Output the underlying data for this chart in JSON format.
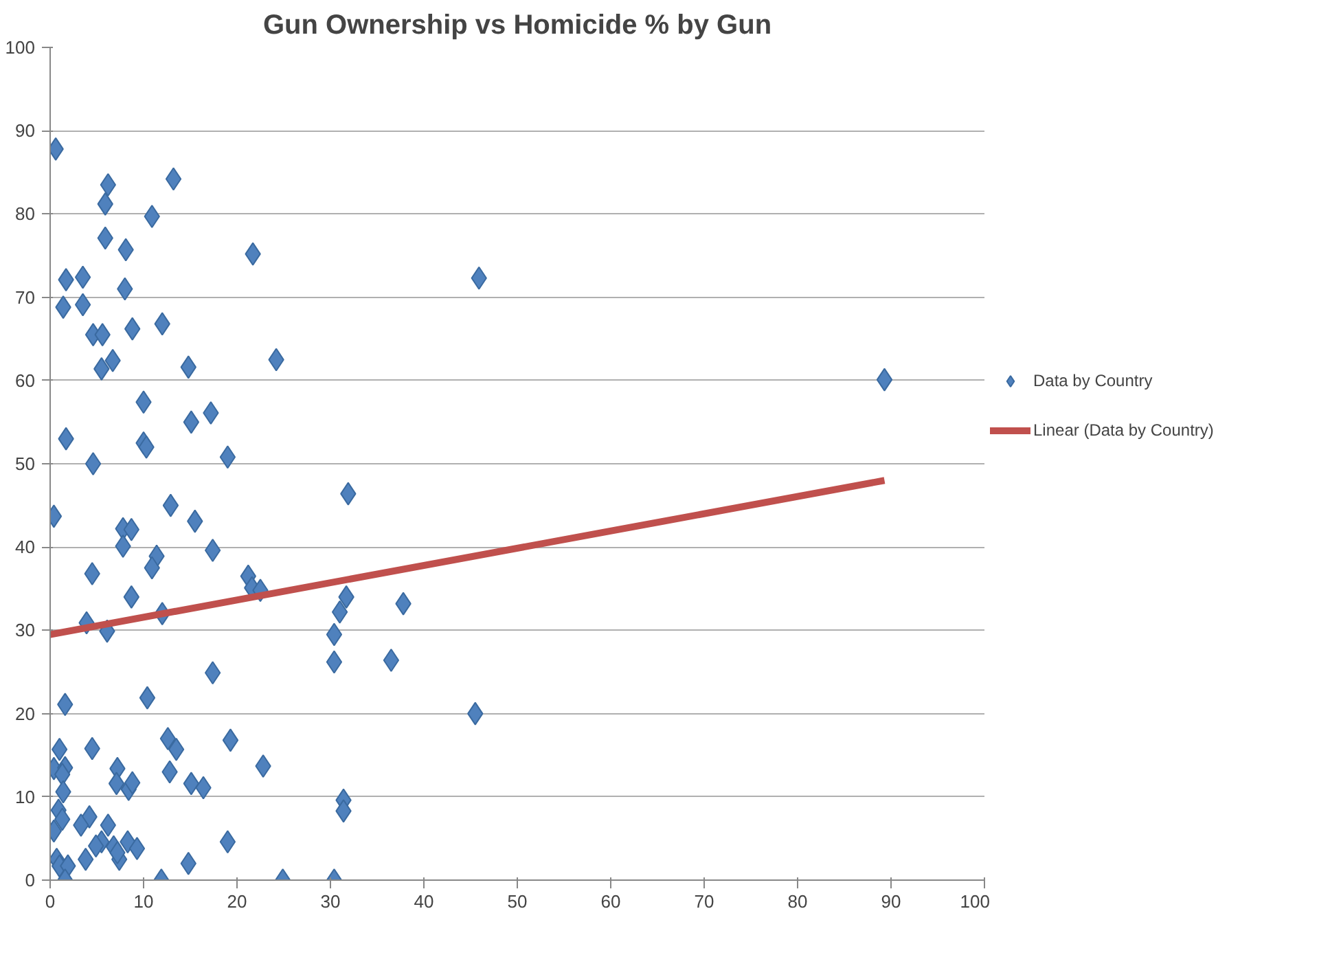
{
  "chart_data": {
    "type": "scatter",
    "title": "Gun Ownership vs Homicide % by Gun",
    "xlim": [
      0,
      100
    ],
    "ylim": [
      0,
      100
    ],
    "xticks": [
      0,
      10,
      20,
      30,
      40,
      50,
      60,
      70,
      80,
      90,
      100
    ],
    "yticks": [
      0,
      10,
      20,
      30,
      40,
      50,
      60,
      70,
      80,
      90,
      100
    ],
    "grid": "y",
    "legend": "right",
    "marker": "diamond",
    "series": [
      {
        "name": "Data by Country",
        "color": "#4f81bd",
        "x": [
          0.6,
          6.2,
          13.2,
          5.9,
          10.9,
          5.9,
          8.1,
          21.7,
          1.7,
          3.5,
          45.9,
          8.0,
          1.4,
          3.5,
          12.0,
          8.8,
          4.6,
          5.6,
          24.2,
          6.7,
          5.5,
          14.8,
          89.3,
          10.0,
          17.2,
          15.1,
          1.7,
          10.0,
          10.3,
          19.0,
          4.6,
          31.9,
          12.9,
          15.5,
          0.4,
          7.8,
          8.7,
          7.8,
          17.4,
          11.4,
          10.9,
          4.5,
          21.2,
          21.6,
          22.5,
          8.7,
          31.7,
          37.8,
          31.0,
          12.0,
          3.9,
          30.4,
          6.1,
          30.4,
          36.5,
          17.4,
          10.4,
          1.6,
          45.5,
          12.6,
          19.3,
          13.5,
          1.0,
          4.5,
          0.4,
          1.6,
          1.3,
          7.2,
          22.8,
          12.8,
          7.1,
          15.1,
          8.4,
          8.8,
          16.4,
          1.4,
          31.4,
          31.4,
          0.9,
          1.3,
          4.2,
          3.3,
          6.2,
          0.4,
          8.3,
          5.5,
          4.9,
          19.0,
          6.8,
          9.3,
          7.4,
          7.2,
          3.8,
          14.8,
          0.7,
          1.0,
          1.9,
          1.6,
          11.9,
          24.9,
          30.4
        ],
        "values": [
          87.8,
          83.5,
          84.2,
          81.2,
          79.7,
          77.1,
          75.7,
          75.2,
          72.1,
          72.4,
          72.3,
          71.0,
          68.8,
          69.1,
          66.8,
          66.2,
          65.5,
          65.5,
          62.5,
          62.4,
          61.4,
          61.6,
          60.1,
          57.4,
          56.1,
          55.0,
          53.0,
          52.5,
          52.0,
          50.8,
          50.0,
          46.4,
          45.0,
          43.1,
          43.7,
          42.2,
          42.1,
          40.1,
          39.6,
          38.9,
          37.5,
          36.8,
          36.5,
          35.1,
          34.8,
          34.0,
          34.0,
          33.2,
          32.2,
          32.0,
          30.9,
          29.5,
          29.9,
          26.2,
          26.4,
          24.9,
          21.9,
          21.1,
          20.0,
          17.0,
          16.8,
          15.7,
          15.7,
          15.8,
          13.4,
          13.5,
          12.7,
          13.4,
          13.7,
          13.0,
          11.6,
          11.6,
          10.9,
          11.7,
          11.1,
          10.6,
          9.6,
          8.3,
          8.4,
          7.3,
          7.6,
          6.6,
          6.6,
          5.9,
          4.6,
          4.6,
          4.1,
          4.6,
          4.0,
          3.8,
          2.5,
          3.3,
          2.5,
          2.0,
          2.5,
          1.7,
          1.7,
          0,
          0,
          0,
          0
        ]
      },
      {
        "name": "Linear (Data by Country)",
        "color": "#c0504d",
        "type": "line",
        "marker": "none",
        "x": [
          0,
          89.3
        ],
        "values": [
          29.5,
          48.0
        ]
      }
    ]
  }
}
